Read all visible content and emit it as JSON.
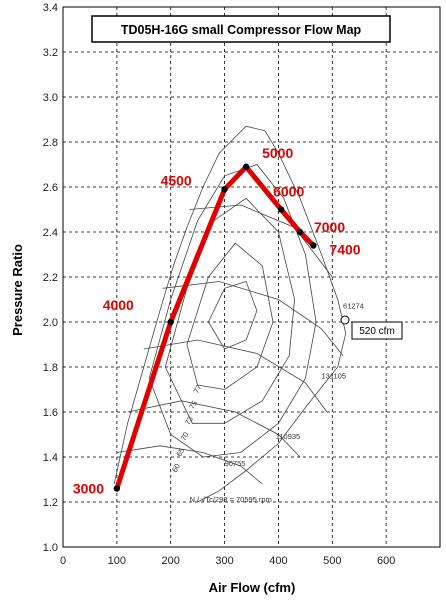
{
  "chart_data": {
    "type": "line",
    "title": "TD05H-16G small Compressor Flow Map",
    "xlabel": "Air Flow (cfm)",
    "ylabel": "Pressure Ratio",
    "xlim": [
      0,
      700
    ],
    "ylim": [
      1.0,
      3.4
    ],
    "x_ticks": [
      "0",
      "100",
      "200",
      "300",
      "400",
      "500",
      "600"
    ],
    "y_ticks": [
      "1.0",
      "1.2",
      "1.4",
      "1.6",
      "1.8",
      "2.0",
      "2.2",
      "2.4",
      "2.6",
      "2.8",
      "3.0",
      "3.2",
      "3.4"
    ],
    "grid": true,
    "series": [
      {
        "color": "#e00000",
        "x": [
          100,
          200,
          300,
          340,
          405,
          440,
          465
        ],
        "y": [
          1.26,
          2.0,
          2.59,
          2.69,
          2.5,
          2.4,
          2.34
        ],
        "point_labels": [
          "3000",
          "4000",
          "4500",
          "5000",
          "6000",
          "7000",
          "7400"
        ]
      }
    ],
    "annotations": {
      "speed_lines": [
        "131105",
        "110935",
        "90755",
        "61274"
      ],
      "efficiency_islands": [
        "77",
        "75",
        "73",
        "70",
        "65",
        "60"
      ],
      "formula": "N / √Tc/298 = 70595 rpm",
      "callout": "520 cfm"
    }
  },
  "colors": {
    "line": "#e00000",
    "map": "#444444",
    "grid": "#000000"
  }
}
